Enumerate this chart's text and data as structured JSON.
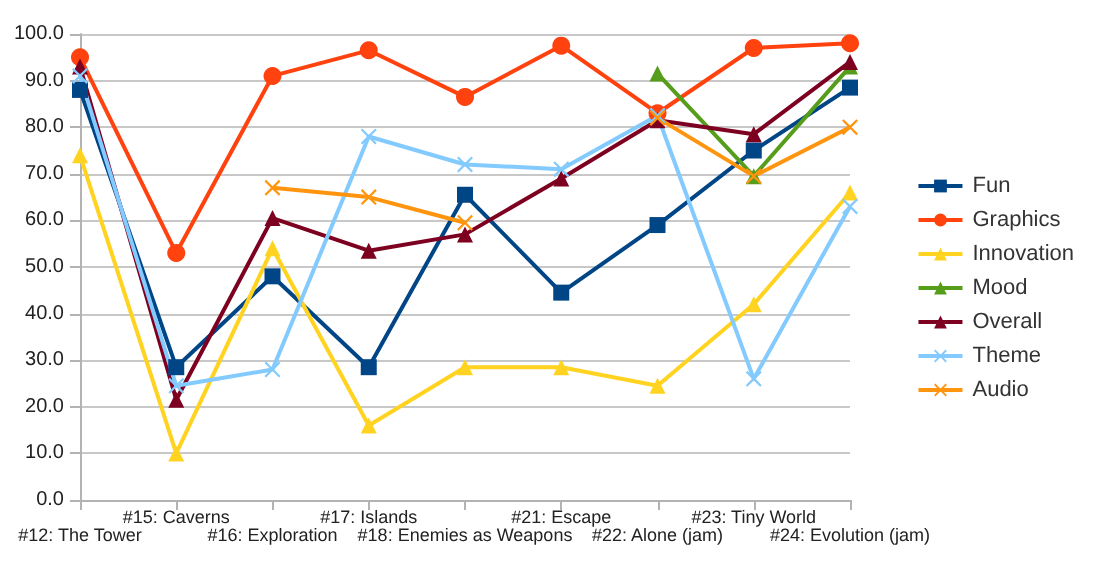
{
  "chart_data": {
    "type": "line",
    "categories": [
      "#12: The Tower",
      "#15: Caverns",
      "#16: Exploration",
      "#17: Islands",
      "#18: Enemies as Weapons",
      "#21: Escape",
      "#22: Alone (jam)",
      "#23: Tiny World",
      "#24: Evolution (jam)"
    ],
    "series": [
      {
        "name": "Fun",
        "color": "#004586",
        "marker": "square",
        "values": [
          88,
          28.5,
          48,
          28.5,
          65.5,
          44.5,
          59,
          75,
          88.5
        ]
      },
      {
        "name": "Graphics",
        "color": "#ff420e",
        "marker": "circle",
        "values": [
          95,
          53,
          91,
          96.5,
          86.5,
          97.5,
          83,
          97,
          98
        ]
      },
      {
        "name": "Innovation",
        "color": "#ffd320",
        "marker": "triangle",
        "values": [
          74,
          10,
          54,
          16,
          28.5,
          28.5,
          24.5,
          42,
          66
        ]
      },
      {
        "name": "Mood",
        "color": "#579d1c",
        "marker": "triangle",
        "values": [
          null,
          null,
          null,
          null,
          null,
          null,
          91.5,
          69.5,
          93
        ]
      },
      {
        "name": "Overall",
        "color": "#7e0021",
        "marker": "triangle",
        "values": [
          93,
          21.5,
          60.5,
          53.5,
          57,
          69,
          81.5,
          78.5,
          94
        ]
      },
      {
        "name": "Theme",
        "color": "#83caff",
        "marker": "cross",
        "values": [
          91,
          24.5,
          28,
          78,
          72,
          71,
          82.5,
          26,
          63
        ]
      },
      {
        "name": "Audio",
        "color": "#ff950e",
        "marker": "cross",
        "values": [
          null,
          null,
          67,
          65,
          59.5,
          null,
          82,
          69.5,
          80
        ]
      }
    ],
    "ylim": [
      0,
      100
    ],
    "yticks": [
      {
        "value": 0,
        "label": "0.0"
      },
      {
        "value": 10,
        "label": "10.0"
      },
      {
        "value": 20,
        "label": "20.0"
      },
      {
        "value": 30,
        "label": "30.0"
      },
      {
        "value": 40,
        "label": "40.0"
      },
      {
        "value": 50,
        "label": "50.0"
      },
      {
        "value": 60,
        "label": "60.0"
      },
      {
        "value": 70,
        "label": "70.0"
      },
      {
        "value": 80,
        "label": "80.0"
      },
      {
        "value": 90,
        "label": "90.0"
      },
      {
        "value": 100,
        "label": "100.0"
      }
    ],
    "grid": "y",
    "legend": "right",
    "line_style": "solid"
  }
}
